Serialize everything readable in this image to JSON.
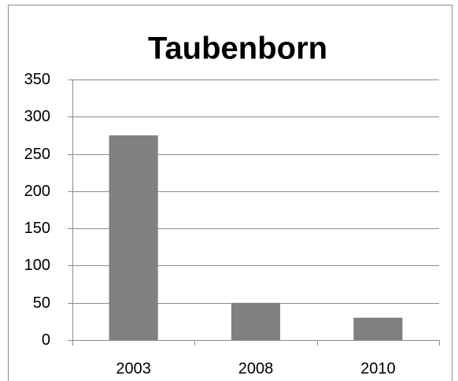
{
  "chart_data": {
    "type": "bar",
    "title": "Taubenborn",
    "categories": [
      "2003",
      "2008",
      "2010"
    ],
    "values": [
      275,
      50,
      30
    ],
    "color": "#808080",
    "ylim": [
      0,
      350
    ],
    "yticks": [
      0,
      50,
      100,
      150,
      200,
      250,
      300,
      350
    ],
    "grid": true
  }
}
